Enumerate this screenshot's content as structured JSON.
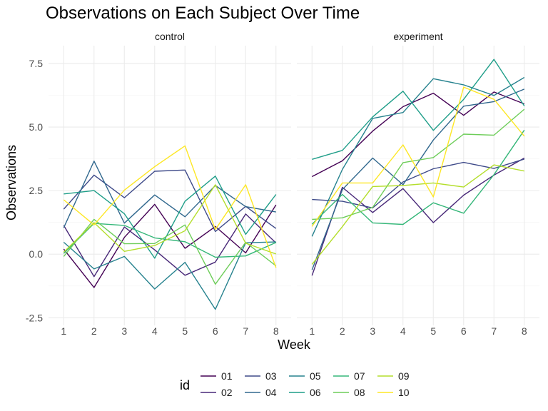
{
  "chart_data": {
    "type": "line",
    "title": "Observations on Each Subject Over Time",
    "xlabel": "Week",
    "ylabel": "Observations",
    "x": [
      1,
      2,
      3,
      4,
      5,
      6,
      7,
      8
    ],
    "ylim": [
      -2.8,
      8.2
    ],
    "yticks": [
      -2.5,
      0.0,
      2.5,
      5.0,
      7.5
    ],
    "ytick_labels": [
      "-2.5",
      "0.0",
      "2.5",
      "5.0",
      "7.5"
    ],
    "xtick_labels": [
      "1",
      "2",
      "3",
      "4",
      "5",
      "6",
      "7",
      "8"
    ],
    "grid": true,
    "legend": {
      "title": "id",
      "placement": "bottom",
      "entries": [
        "01",
        "02",
        "03",
        "04",
        "05",
        "06",
        "07",
        "08",
        "09",
        "10"
      ]
    },
    "colors": {
      "01": "#440154",
      "02": "#482878",
      "03": "#3E4A89",
      "04": "#31688E",
      "05": "#26828E",
      "06": "#1F9E89",
      "07": "#35B779",
      "08": "#6DCD59",
      "09": "#B4DE2C",
      "10": "#FDE725"
    },
    "panels": [
      {
        "label": "control",
        "series": [
          {
            "name": "01",
            "values": [
              0.2,
              -1.31,
              0.66,
              1.96,
              0.23,
              1.09,
              0.05,
              1.94
            ]
          },
          {
            "name": "02",
            "values": [
              1.13,
              -0.88,
              1.07,
              0.17,
              -0.83,
              -0.31,
              1.58,
              0.44
            ]
          },
          {
            "name": "03",
            "values": [
              1.77,
              3.11,
              2.22,
              3.26,
              3.31,
              0.89,
              1.88,
              1.01
            ]
          },
          {
            "name": "04",
            "values": [
              1.04,
              3.66,
              1.22,
              2.33,
              1.47,
              2.7,
              1.87,
              1.66
            ]
          },
          {
            "name": "05",
            "values": [
              0.47,
              -0.58,
              -0.09,
              -1.37,
              -0.32,
              -2.17,
              0.45,
              0.48
            ]
          },
          {
            "name": "06",
            "values": [
              2.37,
              2.5,
              1.59,
              -0.16,
              2.08,
              3.07,
              0.78,
              2.35
            ]
          },
          {
            "name": "07",
            "values": [
              0.03,
              1.21,
              1.13,
              0.64,
              0.49,
              -0.12,
              -0.07,
              0.46
            ]
          },
          {
            "name": "08",
            "values": [
              -0.09,
              1.37,
              0.41,
              0.42,
              1.15,
              -1.18,
              0.47,
              -0.46
            ]
          },
          {
            "name": "09",
            "values": [
              0.08,
              1.24,
              0.11,
              0.34,
              0.92,
              2.73,
              0.43,
              0.01
            ]
          },
          {
            "name": "10",
            "values": [
              2.14,
              1.15,
              2.52,
              3.44,
              4.26,
              0.97,
              2.73,
              -0.53
            ]
          }
        ]
      },
      {
        "label": "experiment",
        "series": [
          {
            "name": "01",
            "values": [
              3.05,
              3.67,
              4.84,
              5.8,
              6.33,
              5.46,
              6.38,
              5.91
            ]
          },
          {
            "name": "02",
            "values": [
              -0.84,
              2.63,
              1.64,
              2.58,
              1.24,
              2.32,
              3.11,
              3.78
            ]
          },
          {
            "name": "03",
            "values": [
              2.15,
              2.08,
              1.82,
              2.84,
              3.36,
              3.61,
              3.37,
              3.74
            ]
          },
          {
            "name": "04",
            "values": [
              -0.62,
              2.54,
              3.78,
              2.73,
              4.49,
              5.82,
              6.0,
              6.49
            ]
          },
          {
            "name": "05",
            "values": [
              0.7,
              3.33,
              5.34,
              5.57,
              6.9,
              6.66,
              6.24,
              6.95
            ]
          },
          {
            "name": "06",
            "values": [
              3.73,
              4.08,
              5.4,
              6.41,
              4.87,
              6.09,
              7.66,
              5.83
            ]
          },
          {
            "name": "07",
            "values": [
              1.18,
              2.35,
              1.23,
              1.17,
              2.02,
              1.61,
              3.13,
              4.88
            ]
          },
          {
            "name": "08",
            "values": [
              1.37,
              1.43,
              1.84,
              3.6,
              3.8,
              4.72,
              4.68,
              5.7
            ]
          },
          {
            "name": "09",
            "values": [
              -0.4,
              1.08,
              2.66,
              2.7,
              2.8,
              2.64,
              3.51,
              3.27
            ]
          },
          {
            "name": "10",
            "values": [
              1.09,
              2.8,
              2.8,
              4.3,
              2.25,
              6.57,
              6.09,
              4.64
            ]
          }
        ]
      }
    ]
  }
}
